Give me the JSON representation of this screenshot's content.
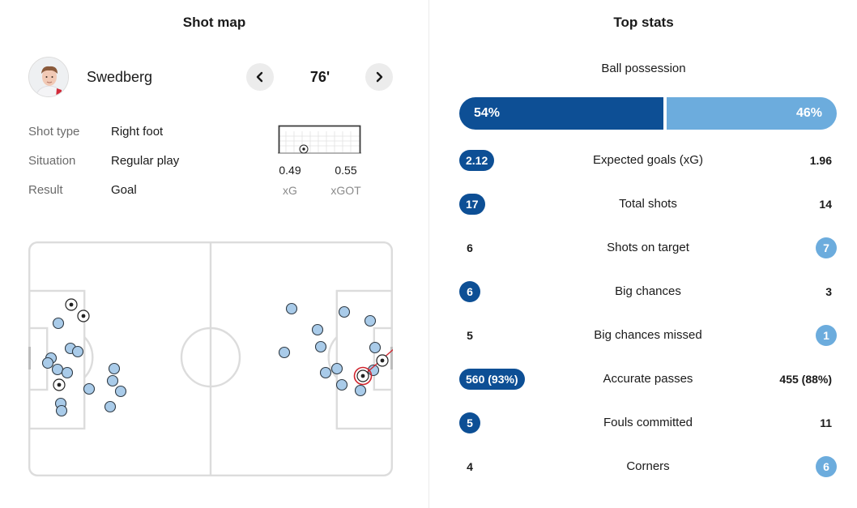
{
  "shot_map": {
    "title": "Shot map",
    "player": {
      "name": "Swedberg",
      "avatar_icon": "player-avatar"
    },
    "minute": "76'",
    "nav": {
      "prev_icon": "chevron-left-icon",
      "next_icon": "chevron-right-icon"
    },
    "details": [
      {
        "label": "Shot type",
        "value": "Right foot"
      },
      {
        "label": "Situation",
        "value": "Regular play"
      },
      {
        "label": "Result",
        "value": "Goal"
      }
    ],
    "xg": {
      "value": "0.49",
      "label": "xG"
    },
    "xgot": {
      "value": "0.55",
      "label": "xGOT"
    }
  },
  "top_stats": {
    "title": "Top stats",
    "possession": {
      "label": "Ball possession",
      "home": "54%",
      "away": "46%",
      "home_share": 54
    },
    "colors": {
      "home": "#0d4f95",
      "away": "#6cacdd"
    },
    "rows": [
      {
        "name": "Expected goals (xG)",
        "home": "2.12",
        "away": "1.96",
        "highlight": "home"
      },
      {
        "name": "Total shots",
        "home": "17",
        "away": "14",
        "highlight": "home"
      },
      {
        "name": "Shots on target",
        "home": "6",
        "away": "7",
        "highlight": "away"
      },
      {
        "name": "Big chances",
        "home": "6",
        "away": "3",
        "highlight": "home"
      },
      {
        "name": "Big chances missed",
        "home": "5",
        "away": "1",
        "highlight": "away"
      },
      {
        "name": "Accurate passes",
        "home": "560 (93%)",
        "away": "455 (88%)",
        "highlight": "home"
      },
      {
        "name": "Fouls committed",
        "home": "5",
        "away": "11",
        "highlight": "home"
      },
      {
        "name": "Corners",
        "home": "4",
        "away": "6",
        "highlight": "away"
      }
    ]
  }
}
